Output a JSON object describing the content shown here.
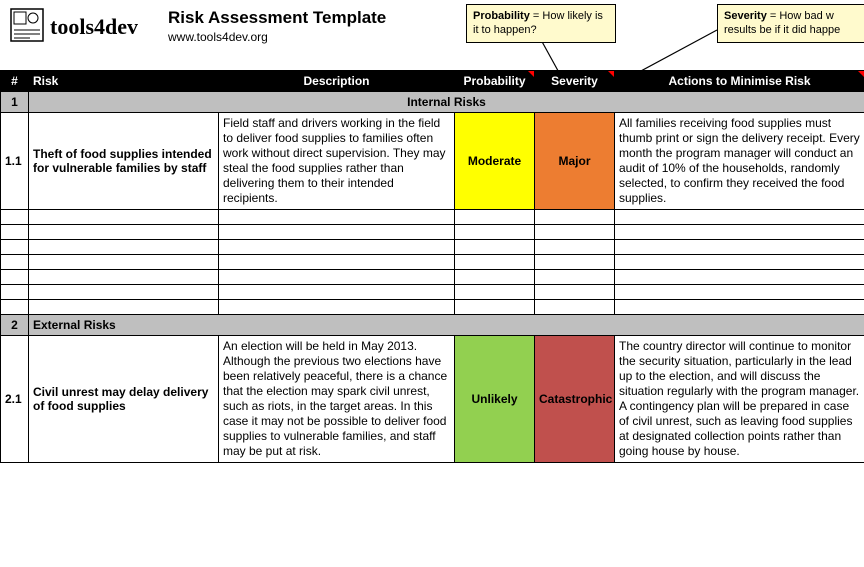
{
  "header": {
    "logo_text": "tools4dev",
    "title": "Risk Assessment Template",
    "subtitle": "www.tools4dev.org"
  },
  "callouts": {
    "probability": {
      "label": "Probability",
      "text": " = How likely is it to happen?"
    },
    "severity": {
      "label": "Severity",
      "text": " = How bad w\nresults be if it did happe"
    }
  },
  "columns": {
    "num": "#",
    "risk": "Risk",
    "description": "Description",
    "probability": "Probability",
    "severity": "Severity",
    "actions": "Actions to Minimise Risk"
  },
  "sections": [
    {
      "num": "1",
      "label": "Internal Risks",
      "label_align": "center",
      "rows": [
        {
          "num": "1.1",
          "risk": "Theft of food supplies intended for vulnerable families by staff",
          "description": "Field staff and drivers working in the field to deliver food supplies to families often work without direct supervision. They may steal the food supplies rather than delivering them to their intended recipients.",
          "probability": "Moderate",
          "probability_bg": "#ffff00",
          "severity": "Major",
          "severity_bg": "#ed7d31",
          "actions": "All families receiving food supplies must thumb print or sign the delivery receipt. Every month the program manager will conduct an audit of 10% of the households, randomly selected, to confirm they received the food supplies."
        }
      ],
      "empty_rows": 7
    },
    {
      "num": "2",
      "label": "External Risks",
      "label_align": "left",
      "rows": [
        {
          "num": "2.1",
          "risk": "Civil unrest may delay delivery of food supplies",
          "description": "An election will be held in May 2013. Although the previous two elections have been relatively peaceful, there is a chance that the election may spark civil unrest, such as riots, in the target areas. In this case it may not be possible to deliver food supplies to vulnerable families, and staff may be put at risk.",
          "probability": "Unlikely",
          "probability_bg": "#92d050",
          "severity": "Catastrophic",
          "severity_bg": "#c0504d",
          "actions": "The country director will continue to monitor the security situation, particularly in the lead up to the election, and will discuss the situation regularly with the program manager. A contingency plan will be prepared in case of civil unrest, such as leaving food supplies at designated collection points rather than going house by house."
        }
      ],
      "empty_rows": 0
    }
  ],
  "colors": {
    "header_bg": "#000000",
    "header_fg": "#ffffff",
    "section_bg": "#bfbfbf",
    "callout_bg": "#fffacd",
    "comment_marker": "#ff0000"
  }
}
